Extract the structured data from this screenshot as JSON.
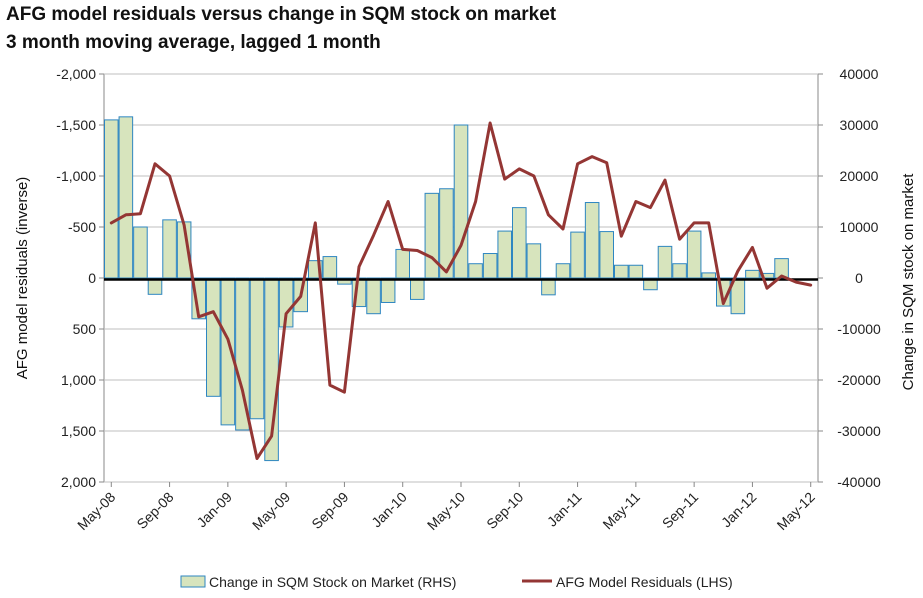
{
  "chart_data": {
    "type": "bar+line",
    "title": "AFG model residuals versus change in SQM stock on market",
    "subtitle": "3 month moving average, lagged 1 month",
    "ylabel_left": "AFG model residuals (inverse)",
    "ylabel_right": "Change in SQM stock on market",
    "left_axis": {
      "range": [
        -2000,
        2000
      ],
      "inverted": true,
      "ticks": [
        -2000,
        -1500,
        -1000,
        -500,
        0,
        500,
        1000,
        1500,
        2000
      ],
      "tick_labels": [
        "-2,000",
        "-1,500",
        "-1,000",
        "-500",
        "0",
        "500",
        "1,000",
        "1,500",
        "2,000"
      ]
    },
    "right_axis": {
      "range": [
        -40000,
        40000
      ],
      "ticks": [
        40000,
        30000,
        20000,
        10000,
        0,
        -10000,
        -20000,
        -30000,
        -40000
      ],
      "tick_labels": [
        "40000",
        "30000",
        "20000",
        "10000",
        "0",
        "-10000",
        "-20000",
        "-30000",
        "-40000"
      ]
    },
    "x_tick_labels": [
      "May-08",
      "Sep-08",
      "Jan-09",
      "May-09",
      "Sep-09",
      "Jan-10",
      "May-10",
      "Sep-10",
      "Jan-11",
      "May-11",
      "Sep-11",
      "Jan-12",
      "May-12"
    ],
    "months": 49,
    "series": [
      {
        "name": "Change in SQM Stock on Market (RHS)",
        "kind": "bar",
        "axis": "right",
        "color": "#d7e4bd",
        "edge": "#2e86c1",
        "values": [
          31000,
          31600,
          10000,
          -3200,
          11400,
          11000,
          -8000,
          -23200,
          -28800,
          -29800,
          -27600,
          -35800,
          -9600,
          -6600,
          3400,
          4200,
          -1200,
          -5600,
          -7000,
          -4800,
          5600,
          -4200,
          16600,
          17500,
          30000,
          2800,
          4800,
          9200,
          13800,
          6700,
          -3300,
          2800,
          9000,
          14800,
          9100,
          2500,
          2500,
          -2300,
          6200,
          2800,
          9200,
          1000,
          -5500,
          -7000,
          1500,
          900,
          3800,
          0,
          0
        ]
      },
      {
        "name": "AFG Model Residuals (LHS)",
        "kind": "line",
        "axis": "left",
        "color": "#943634",
        "values": [
          -540,
          -620,
          -630,
          -1120,
          -1000,
          -520,
          380,
          330,
          600,
          1100,
          1770,
          1550,
          350,
          180,
          -540,
          1050,
          1120,
          -110,
          -420,
          -750,
          -280,
          -270,
          -200,
          -60,
          -320,
          -750,
          -1520,
          -970,
          -1070,
          -1000,
          -620,
          -480,
          -1120,
          -1190,
          -1130,
          -410,
          -750,
          -690,
          -960,
          -380,
          -540,
          -540,
          250,
          -70,
          -300,
          100,
          -20,
          40,
          70
        ]
      }
    ],
    "legend": {
      "position": "bottom",
      "items": [
        "Change in SQM Stock on Market (RHS)",
        "AFG Model Residuals (LHS)"
      ]
    }
  }
}
